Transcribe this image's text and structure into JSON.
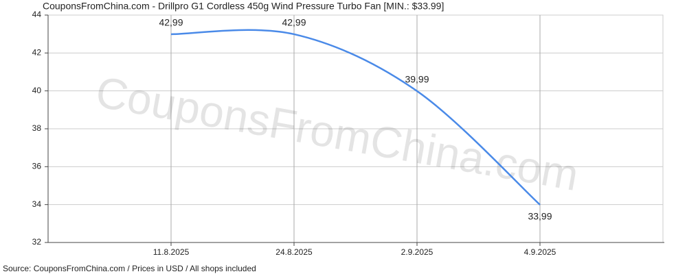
{
  "chart_data": {
    "type": "line",
    "title": "CouponsFromChina.com - Drillpro G1 Cordless 450g Wind Pressure Turbo Fan [MIN.: $33.99]",
    "watermark": "CouponsFromChina.com",
    "source": "Source: CouponsFromChina.com / Prices in USD / All shops included",
    "categories": [
      "11.8.2025",
      "24.8.2025",
      "2.9.2025",
      "4.9.2025"
    ],
    "series": [
      {
        "color": "#4a8ae8",
        "values": [
          42.99,
          42.99,
          39.99,
          33.99
        ],
        "value_labels": [
          "42,99",
          "42,99",
          "39,99",
          "33,99"
        ]
      }
    ],
    "ylim": [
      32,
      44
    ],
    "yticks": [
      32,
      34,
      36,
      38,
      40,
      42,
      44
    ],
    "grid": true
  }
}
